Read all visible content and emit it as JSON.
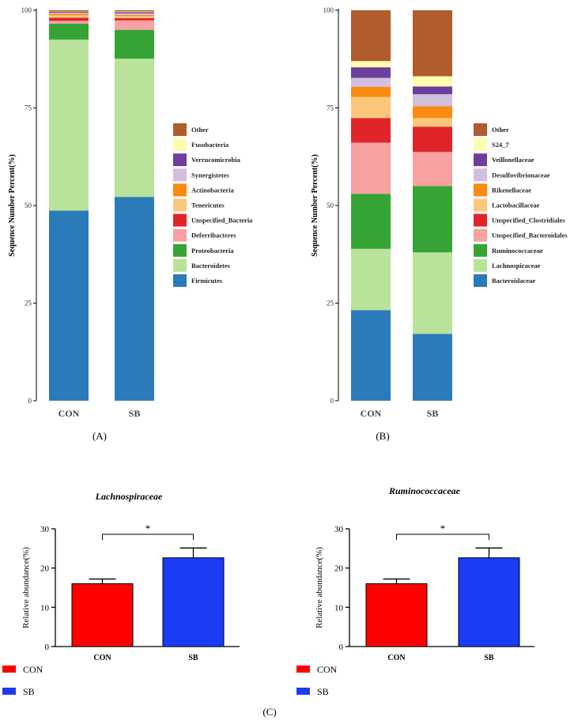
{
  "colors": {
    "axis": "#000000",
    "con_bar": "#ff0000",
    "sb_bar": "#1a3cf5"
  },
  "chart_data": [
    {
      "type": "bar",
      "stacked": true,
      "panel_label": "(A)",
      "ylabel": "Sequence Number Percent(%)",
      "ylim": [
        0,
        100
      ],
      "yticks": [
        0,
        25,
        50,
        75,
        100
      ],
      "categories": [
        "CON",
        "SB"
      ],
      "series": [
        {
          "name": "Firmicutes",
          "color": "#2b7bba",
          "values": [
            48.7,
            52.2
          ]
        },
        {
          "name": "Bacteroidetes",
          "color": "#b9e29a",
          "values": [
            43.8,
            35.4
          ]
        },
        {
          "name": "Proteobacteria",
          "color": "#35a434",
          "values": [
            4.1,
            7.4
          ]
        },
        {
          "name": "Deferribacteres",
          "color": "#f7a1a2",
          "values": [
            0.7,
            2.4
          ]
        },
        {
          "name": "Unspecified_Bacteria",
          "color": "#e0252a",
          "values": [
            0.8,
            0.6
          ]
        },
        {
          "name": "Tenericutes",
          "color": "#fbc77a",
          "values": [
            0.6,
            0.5
          ]
        },
        {
          "name": "Actinobacteria",
          "color": "#fb8a10",
          "values": [
            0.4,
            0.3
          ]
        },
        {
          "name": "Synergistetes",
          "color": "#d2bfdd",
          "values": [
            0.3,
            0.4
          ]
        },
        {
          "name": "Verrucomicrobia",
          "color": "#6d3e9b",
          "values": [
            0.2,
            0.3
          ]
        },
        {
          "name": "Fusobacteria",
          "color": "#fdfbb0",
          "values": [
            0.1,
            0.2
          ]
        },
        {
          "name": "Other",
          "color": "#b05c2c",
          "values": [
            0.3,
            0.3
          ]
        }
      ]
    },
    {
      "type": "bar",
      "stacked": true,
      "panel_label": "(B)",
      "ylabel": "Sequence Number Percent(%)",
      "ylim": [
        0,
        100
      ],
      "yticks": [
        0,
        25,
        50,
        75,
        100
      ],
      "categories": [
        "CON",
        "SB"
      ],
      "series": [
        {
          "name": "Bacteroidaceae",
          "color": "#2b7bba",
          "values": [
            23.2,
            17.1
          ]
        },
        {
          "name": "Lachnospiraceae",
          "color": "#b9e29a",
          "values": [
            15.7,
            20.9
          ]
        },
        {
          "name": "Ruminococcaceae",
          "color": "#35a434",
          "values": [
            14.1,
            17.0
          ]
        },
        {
          "name": "Unspecified_Bacteroidales",
          "color": "#f7a1a2",
          "values": [
            13.1,
            8.7
          ]
        },
        {
          "name": "Unspecified_Clostridiales",
          "color": "#e0252a",
          "values": [
            6.3,
            6.5
          ]
        },
        {
          "name": "Lactobacillaceae",
          "color": "#fbc77a",
          "values": [
            5.4,
            2.2
          ]
        },
        {
          "name": "Rikenellaceae",
          "color": "#fb8a10",
          "values": [
            2.6,
            3.0
          ]
        },
        {
          "name": "Desulfovibrionaceae",
          "color": "#d2bfdd",
          "values": [
            2.3,
            3.1
          ]
        },
        {
          "name": "Veillonellaceae",
          "color": "#6d3e9b",
          "values": [
            2.7,
            2.0
          ]
        },
        {
          "name": "S24_7",
          "color": "#fdfbb0",
          "values": [
            1.6,
            2.6
          ]
        },
        {
          "name": "Other",
          "color": "#b05c2c",
          "values": [
            13.0,
            16.9
          ]
        }
      ]
    },
    {
      "type": "bar",
      "panel_label": "(C)",
      "title": "Lachnospiraceae",
      "ylabel": "Relative abundance(%)",
      "ylim": [
        0,
        30
      ],
      "yticks": [
        0,
        10,
        20,
        30
      ],
      "categories": [
        "CON",
        "SB"
      ],
      "values": [
        16.0,
        22.6
      ],
      "errors": [
        1.2,
        2.5
      ],
      "significance": "*",
      "legend": [
        "CON",
        "SB"
      ]
    },
    {
      "type": "bar",
      "title": "Ruminococcaceae",
      "ylabel": "Relative abundance(%)",
      "ylim": [
        0,
        30
      ],
      "yticks": [
        0,
        10,
        20,
        30
      ],
      "categories": [
        "CON",
        "SB"
      ],
      "values": [
        16.0,
        22.6
      ],
      "errors": [
        1.2,
        2.5
      ],
      "significance": "*",
      "legend": [
        "CON",
        "SB"
      ]
    }
  ]
}
